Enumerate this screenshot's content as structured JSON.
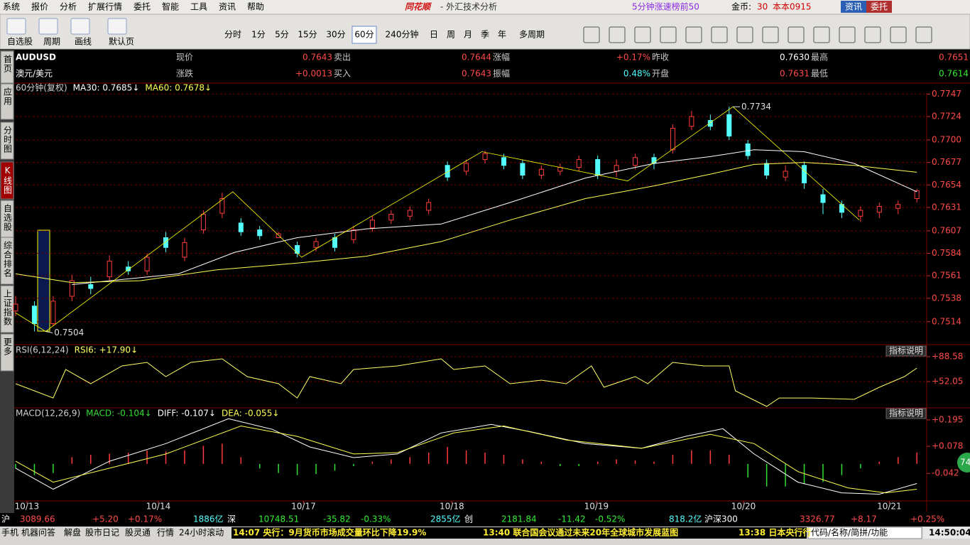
{
  "menu": {
    "items": [
      "系统",
      "报价",
      "分析",
      "扩展行情",
      "委托",
      "智能",
      "工具",
      "资讯",
      "帮助"
    ],
    "logo": "同花顺",
    "app_title": "- 外汇技术分析",
    "ranking": "5分钟涨速榜前50",
    "coins_label": "金币:",
    "coins": "30",
    "user": "本本0915",
    "buttons": [
      "资讯",
      "委托"
    ]
  },
  "toolbar": {
    "tools": [
      "自选股",
      "周期",
      "画线",
      "默认页"
    ],
    "periods": [
      "分时",
      "1分",
      "5分",
      "15分",
      "30分",
      "60分",
      "240分钟",
      "日",
      "周",
      "月",
      "季",
      "年",
      "多周期"
    ],
    "active_period_index": 5
  },
  "sidebar": {
    "tabs": [
      "首页",
      "应用",
      "分时图",
      "K线图",
      "自选股",
      "综合排名",
      "上证指数",
      "更多"
    ],
    "active": 3
  },
  "quote": {
    "rows": [
      {
        "symbol": "AUDUSD",
        "fields": [
          {
            "label": "现价",
            "value": "0.7643",
            "color": "#ff4a4a"
          },
          {
            "label": "卖出",
            "value": "0.7644",
            "color": "#ff4a4a"
          },
          {
            "label": "涨幅",
            "value": "+0.17%",
            "color": "#ff4a4a"
          },
          {
            "label": "昨收",
            "value": "0.7630",
            "color": "#ffffff"
          },
          {
            "label": "最高",
            "value": "0.7651",
            "color": "#ff4a4a"
          }
        ]
      },
      {
        "symbol": "澳元/美元",
        "fields": [
          {
            "label": "涨跌",
            "value": "+0.0013",
            "color": "#ff4a4a"
          },
          {
            "label": "买入",
            "value": "0.7643",
            "color": "#ff4a4a"
          },
          {
            "label": "振幅",
            "value": "0.48%",
            "color": "#54ffff"
          },
          {
            "label": "开盘",
            "value": "0.7631",
            "color": "#ff4a4a"
          },
          {
            "label": "最低",
            "value": "0.7614",
            "color": "#33ee33"
          }
        ]
      }
    ]
  },
  "chart_data": [
    {
      "type": "candlestick",
      "title": "60分钟(复权)",
      "up_color": "#ff3c3c",
      "down_color": "#54ffff",
      "grid": true,
      "xlim": [
        0,
        145
      ],
      "ylim": [
        0.7492,
        0.7748
      ],
      "yticks": [
        0.7747,
        0.7724,
        {
          "value": 0.77,
          "label": "0.7700"
        },
        0.7677,
        0.7654,
        0.7631,
        0.7607,
        0.7584,
        0.7561,
        0.7538,
        0.7514
      ],
      "xticks": [
        {
          "value": 1.8,
          "label": "10/13"
        },
        {
          "value": 22.8,
          "label": "10/14"
        },
        {
          "value": 46,
          "label": "10/17"
        },
        {
          "value": 69.7,
          "label": "10/18"
        },
        {
          "value": 92.8,
          "label": "10/19"
        },
        {
          "value": 116.3,
          "label": "10/20"
        },
        {
          "value": 139.6,
          "label": "10/21"
        }
      ],
      "x": [
        0,
        3,
        6,
        9,
        12,
        15,
        18,
        21,
        24,
        27,
        30,
        33,
        36,
        39,
        42,
        45,
        48,
        51,
        54,
        57,
        60,
        63,
        66,
        69,
        72,
        75,
        78,
        81,
        84,
        87,
        90,
        93,
        96,
        99,
        102,
        105,
        108,
        111,
        114,
        117,
        120,
        123,
        126,
        129,
        132,
        135,
        138,
        141,
        144
      ],
      "open": [
        0.7525,
        0.753,
        0.7512,
        0.754,
        0.7552,
        0.756,
        0.757,
        0.7566,
        0.76,
        0.758,
        0.7608,
        0.7625,
        0.7615,
        0.7608,
        0.76,
        0.7592,
        0.759,
        0.76,
        0.7598,
        0.761,
        0.7618,
        0.7622,
        0.7628,
        0.7674,
        0.7668,
        0.768,
        0.7682,
        0.7676,
        0.7664,
        0.7668,
        0.7672,
        0.768,
        0.7668,
        0.7674,
        0.7682,
        0.769,
        0.7714,
        0.772,
        0.7726,
        0.7696,
        0.7676,
        0.7662,
        0.7674,
        0.7644,
        0.7634,
        0.7622,
        0.7626,
        0.763,
        0.764
      ],
      "close": [
        0.7532,
        0.7512,
        0.7535,
        0.7556,
        0.7548,
        0.7576,
        0.7566,
        0.758,
        0.759,
        0.7595,
        0.7624,
        0.764,
        0.7606,
        0.7602,
        0.7604,
        0.7584,
        0.7596,
        0.759,
        0.7608,
        0.7618,
        0.7624,
        0.7628,
        0.7636,
        0.7662,
        0.7676,
        0.7686,
        0.7674,
        0.7664,
        0.767,
        0.7672,
        0.768,
        0.7664,
        0.7674,
        0.7682,
        0.7676,
        0.7712,
        0.7724,
        0.7714,
        0.7704,
        0.7684,
        0.7664,
        0.7668,
        0.7656,
        0.7636,
        0.7626,
        0.7628,
        0.7632,
        0.7634,
        0.7648
      ],
      "high": [
        0.754,
        0.7535,
        0.754,
        0.7562,
        0.756,
        0.7582,
        0.7576,
        0.7584,
        0.7606,
        0.76,
        0.7628,
        0.7646,
        0.762,
        0.7612,
        0.7606,
        0.7596,
        0.76,
        0.7604,
        0.7612,
        0.7622,
        0.7628,
        0.7632,
        0.764,
        0.7678,
        0.768,
        0.7689,
        0.7686,
        0.768,
        0.7674,
        0.7676,
        0.7684,
        0.7684,
        0.768,
        0.7686,
        0.7686,
        0.7716,
        0.773,
        0.7726,
        0.7734,
        0.77,
        0.768,
        0.7674,
        0.7678,
        0.765,
        0.7638,
        0.7632,
        0.7636,
        0.7638,
        0.765
      ],
      "low": [
        0.752,
        0.7504,
        0.751,
        0.7535,
        0.7542,
        0.7556,
        0.7562,
        0.7562,
        0.7585,
        0.7576,
        0.7604,
        0.762,
        0.7602,
        0.7598,
        0.76,
        0.758,
        0.7586,
        0.7586,
        0.7594,
        0.7606,
        0.7614,
        0.7618,
        0.7624,
        0.7658,
        0.7664,
        0.7676,
        0.767,
        0.766,
        0.766,
        0.7664,
        0.7668,
        0.766,
        0.7662,
        0.767,
        0.767,
        0.7686,
        0.771,
        0.771,
        0.77,
        0.768,
        0.766,
        0.7658,
        0.765,
        0.7624,
        0.762,
        0.7616,
        0.762,
        0.7624,
        0.7636
      ],
      "series": [
        {
          "name": "MA30: 0.7685↓",
          "color": "#ffffff",
          "x": [
            9,
            26,
            35,
            45,
            56,
            68,
            79,
            91,
            102,
            111,
            118,
            126,
            134,
            144
          ],
          "values": [
            0.7552,
            0.7563,
            0.7585,
            0.76,
            0.7609,
            0.7614,
            0.7636,
            0.7661,
            0.7676,
            0.7683,
            0.769,
            0.7688,
            0.7676,
            0.7647
          ]
        },
        {
          "name": "MA60: 0.7678↓",
          "color": "#ffff55",
          "x": [
            0,
            9,
            20,
            32,
            45,
            56,
            68,
            79,
            91,
            102,
            111,
            118,
            126,
            134,
            144
          ],
          "values": [
            0.7563,
            0.7554,
            0.7556,
            0.7567,
            0.7574,
            0.7581,
            0.7596,
            0.7618,
            0.764,
            0.7653,
            0.7665,
            0.7675,
            0.7677,
            0.7674,
            0.7667
          ]
        }
      ],
      "zigzag": {
        "color": "#ffff00",
        "x": [
          0,
          4.8,
          34.7,
          45.7,
          74.5,
          97.8,
          114.6,
          134.8
        ],
        "values": [
          0.7523,
          0.7504,
          0.7647,
          0.758,
          0.7688,
          0.7658,
          0.7734,
          0.7618
        ]
      },
      "annotations": [
        {
          "text": "0.7734",
          "x": 114.6,
          "y": 0.7734
        },
        {
          "text": "0.7504",
          "x": 4.8,
          "y": 0.7504
        }
      ]
    },
    {
      "type": "line",
      "title": "RSI(6,12,24)",
      "help_button": "指标说明",
      "grid": true,
      "xlim": [
        0,
        145
      ],
      "ylim": [
        14.5,
        104.2
      ],
      "yticks": [
        {
          "value": 88.58,
          "label": "+88.58"
        },
        {
          "value": 52.05,
          "label": "+52.05"
        }
      ],
      "series": [
        {
          "name": "RSI6: +17.90↓",
          "color": "#ffff66",
          "x": [
            0,
            6,
            8,
            12,
            17,
            21,
            24,
            28,
            33,
            37,
            42,
            45,
            47,
            52,
            54,
            61,
            68,
            70,
            75,
            79,
            84,
            88,
            92,
            94,
            99,
            101,
            105,
            110,
            114,
            115,
            120,
            122,
            127,
            134,
            138,
            142,
            144
          ],
          "values": [
            48.9,
            28.0,
            69.8,
            48.9,
            75.0,
            80.2,
            59.4,
            80.2,
            85.4,
            59.4,
            48.9,
            28.0,
            59.4,
            48.9,
            69.8,
            75.0,
            85.4,
            69.8,
            75.0,
            48.9,
            54.1,
            48.9,
            75.0,
            43.7,
            59.4,
            48.9,
            80.2,
            75.0,
            75.0,
            38.5,
            15.5,
            28.0,
            28.0,
            26.0,
            43.7,
            59.4,
            71.9
          ]
        }
      ]
    },
    {
      "type": "macd",
      "title": "MACD(12,26,9)",
      "help_button": "指标说明",
      "xlim": [
        0,
        145
      ],
      "ylim": [
        -0.164,
        0.245
      ],
      "yticks": [
        {
          "value": 0.195,
          "label": "+0.195"
        },
        {
          "value": 0.078,
          "label": "+0.078"
        },
        {
          "value": -0.042,
          "label": "-0.042"
        }
      ],
      "histogram": {
        "name": "MACD: -0.104↓",
        "up_color": "#ff3c3c",
        "down_color": "#33dd33",
        "x": [
          0,
          3,
          6,
          9,
          12,
          15,
          18,
          21,
          24,
          27,
          30,
          33,
          36,
          39,
          42,
          45,
          48,
          51,
          54,
          57,
          60,
          63,
          66,
          69,
          72,
          75,
          78,
          81,
          84,
          87,
          90,
          93,
          96,
          99,
          102,
          105,
          108,
          111,
          114,
          117,
          120,
          123,
          126,
          129,
          132,
          135,
          138,
          141,
          144
        ],
        "values": [
          -0.02,
          -0.05,
          -0.04,
          0.03,
          0.04,
          0.045,
          0.05,
          0.06,
          0.055,
          0.06,
          0.08,
          0.09,
          0.03,
          -0.02,
          -0.04,
          -0.05,
          -0.045,
          -0.03,
          -0.01,
          0.01,
          0.02,
          0.03,
          0.05,
          0.075,
          0.06,
          0.05,
          0.04,
          0.02,
          0.01,
          -0.01,
          -0.01,
          0.01,
          0.02,
          0.015,
          0.01,
          0.04,
          0.06,
          0.06,
          0.04,
          -0.06,
          -0.1,
          -0.1,
          -0.09,
          -0.08,
          -0.05,
          -0.02,
          0.01,
          0.03,
          0.05
        ]
      },
      "series": [
        {
          "name": "DIFF: -0.107↓",
          "color": "#ffffff",
          "x": [
            0,
            6,
            15,
            24,
            34,
            41,
            47,
            54,
            61,
            68,
            76,
            82,
            91,
            100,
            107,
            113,
            118,
            125,
            132,
            138,
            144
          ],
          "values": [
            -0.019,
            -0.112,
            0.012,
            0.09,
            0.2,
            0.153,
            0.075,
            0.028,
            0.044,
            0.137,
            0.175,
            0.144,
            0.09,
            0.069,
            0.122,
            0.156,
            0.044,
            -0.081,
            -0.128,
            -0.134,
            -0.087
          ]
        },
        {
          "name": "DEA: -0.055↓",
          "color": "#ffff55",
          "x": [
            0,
            6,
            15,
            24,
            36,
            45,
            54,
            61,
            70,
            78,
            88,
            100,
            111,
            118,
            125,
            133,
            139,
            144
          ],
          "values": [
            0.012,
            -0.081,
            -0.019,
            0.044,
            0.168,
            0.122,
            0.044,
            0.05,
            0.137,
            0.168,
            0.106,
            0.069,
            0.131,
            0.09,
            -0.034,
            -0.106,
            -0.128,
            -0.112
          ]
        }
      ]
    }
  ],
  "ticker": [
    {
      "text": "沪",
      "color": "#ffffff"
    },
    {
      "text": "3089.66",
      "color": "#ff4a4a"
    },
    {
      "text": "+5.20",
      "color": "#ff4a4a"
    },
    {
      "text": "+0.17%",
      "color": "#ff4a4a"
    },
    {
      "text": "1886亿",
      "color": "#54ffff"
    },
    {
      "text": "深",
      "color": "#ffffff"
    },
    {
      "text": "10748.51",
      "color": "#33ee33"
    },
    {
      "text": "-35.82",
      "color": "#33ee33"
    },
    {
      "text": "-0.33%",
      "color": "#33ee33"
    },
    {
      "text": "2855亿",
      "color": "#54ffff"
    },
    {
      "text": "创",
      "color": "#ffffff"
    },
    {
      "text": "2181.84",
      "color": "#33ee33"
    },
    {
      "text": "-11.42",
      "color": "#33ee33"
    },
    {
      "text": "-0.52%",
      "color": "#33ee33"
    },
    {
      "text": "818.2亿",
      "color": "#54ffff"
    },
    {
      "text": "沪深300",
      "color": "#ffffff"
    },
    {
      "text": "3326.77",
      "color": "#ff4a4a"
    },
    {
      "text": "+8.17",
      "color": "#ff4a4a"
    },
    {
      "text": "+0.25%",
      "color": "#ff4a4a"
    }
  ],
  "statusbar": {
    "buttons": [
      "手机",
      "机器问答",
      "解盘",
      "股市日记",
      "股灵通",
      "行情",
      "24小时滚动"
    ],
    "news": [
      "14:07 央行：9月货币市场成交量环比下降19.9%",
      "13:40 联合国会议通过未来20年全球城市发展蓝图",
      "13:38 日本央行行"
    ],
    "search": "代码/名称/简拼/功能",
    "time": "14:50:04"
  },
  "badge": "74"
}
